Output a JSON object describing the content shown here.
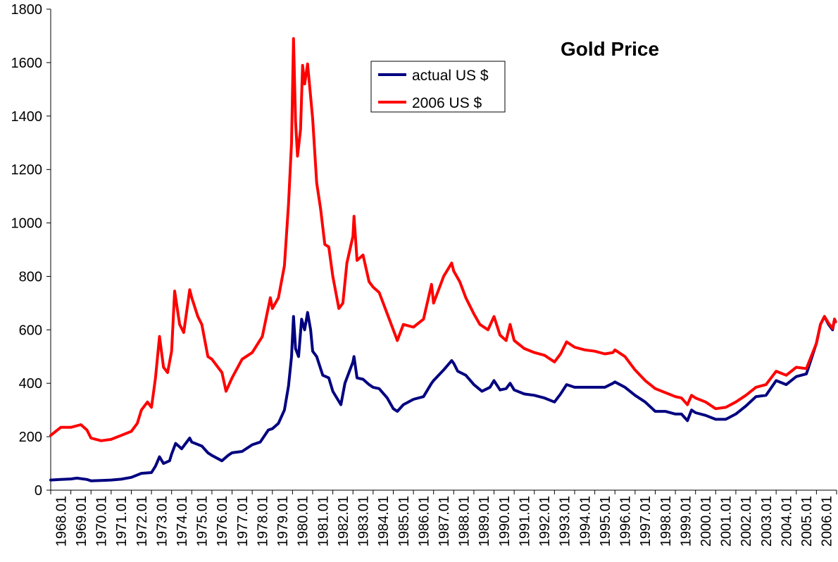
{
  "chart_data": {
    "type": "line",
    "title": "Gold Price",
    "xlabel": "",
    "ylabel": "",
    "ylim": [
      0,
      1800
    ],
    "y_ticks": [
      "0",
      "200",
      "400",
      "600",
      "800",
      "1000",
      "1200",
      "1400",
      "1600",
      "1800"
    ],
    "x_ticks": [
      "1968.01",
      "1969.01",
      "1970.01",
      "1971.01",
      "1972.01",
      "1973.01",
      "1974.01",
      "1975.01",
      "1976.01",
      "1977.01",
      "1978.01",
      "1979.01",
      "1980.01",
      "1981.01",
      "1982.01",
      "1983.01",
      "1984.01",
      "1985.01",
      "1986.01",
      "1987.01",
      "1988.01",
      "1989.01",
      "1990.01",
      "1991.01",
      "1992.01",
      "1993.01",
      "1994.01",
      "1995.01",
      "1996.01",
      "1997.01",
      "1998.01",
      "1999.01",
      "2000.01",
      "2001.01",
      "2002.01",
      "2003.01",
      "2004.01",
      "2005.01",
      "2006.01"
    ],
    "grid": false,
    "legend_position": "top-center",
    "series": [
      {
        "name": "actual US $",
        "color": "#000080",
        "points": [
          [
            1968.0,
            38
          ],
          [
            1968.5,
            40
          ],
          [
            1969.0,
            42
          ],
          [
            1969.3,
            45
          ],
          [
            1969.8,
            40
          ],
          [
            1970.0,
            35
          ],
          [
            1970.5,
            36
          ],
          [
            1971.0,
            38
          ],
          [
            1971.5,
            41
          ],
          [
            1972.0,
            48
          ],
          [
            1972.5,
            63
          ],
          [
            1973.0,
            66
          ],
          [
            1973.2,
            90
          ],
          [
            1973.4,
            125
          ],
          [
            1973.6,
            100
          ],
          [
            1973.9,
            110
          ],
          [
            1974.0,
            135
          ],
          [
            1974.2,
            175
          ],
          [
            1974.5,
            155
          ],
          [
            1974.9,
            195
          ],
          [
            1975.0,
            180
          ],
          [
            1975.5,
            165
          ],
          [
            1975.8,
            140
          ],
          [
            1976.0,
            130
          ],
          [
            1976.5,
            110
          ],
          [
            1976.8,
            130
          ],
          [
            1977.0,
            140
          ],
          [
            1977.5,
            145
          ],
          [
            1978.0,
            170
          ],
          [
            1978.4,
            180
          ],
          [
            1978.8,
            225
          ],
          [
            1979.0,
            230
          ],
          [
            1979.3,
            250
          ],
          [
            1979.6,
            300
          ],
          [
            1979.8,
            390
          ],
          [
            1979.95,
            500
          ],
          [
            1980.05,
            650
          ],
          [
            1980.15,
            530
          ],
          [
            1980.3,
            500
          ],
          [
            1980.45,
            640
          ],
          [
            1980.6,
            600
          ],
          [
            1980.75,
            665
          ],
          [
            1980.9,
            600
          ],
          [
            1981.0,
            520
          ],
          [
            1981.2,
            500
          ],
          [
            1981.5,
            430
          ],
          [
            1981.8,
            420
          ],
          [
            1982.0,
            370
          ],
          [
            1982.4,
            320
          ],
          [
            1982.6,
            400
          ],
          [
            1982.8,
            440
          ],
          [
            1983.0,
            480
          ],
          [
            1983.05,
            500
          ],
          [
            1983.2,
            420
          ],
          [
            1983.5,
            415
          ],
          [
            1983.8,
            395
          ],
          [
            1984.0,
            385
          ],
          [
            1984.3,
            380
          ],
          [
            1984.7,
            345
          ],
          [
            1985.0,
            305
          ],
          [
            1985.2,
            295
          ],
          [
            1985.5,
            320
          ],
          [
            1986.0,
            340
          ],
          [
            1986.5,
            350
          ],
          [
            1986.9,
            400
          ],
          [
            1987.0,
            410
          ],
          [
            1987.5,
            450
          ],
          [
            1987.9,
            485
          ],
          [
            1988.0,
            475
          ],
          [
            1988.2,
            445
          ],
          [
            1988.6,
            430
          ],
          [
            1989.0,
            395
          ],
          [
            1989.4,
            370
          ],
          [
            1989.8,
            385
          ],
          [
            1990.0,
            410
          ],
          [
            1990.3,
            375
          ],
          [
            1990.6,
            380
          ],
          [
            1990.8,
            400
          ],
          [
            1991.0,
            375
          ],
          [
            1991.5,
            360
          ],
          [
            1992.0,
            355
          ],
          [
            1992.5,
            345
          ],
          [
            1993.0,
            330
          ],
          [
            1993.3,
            360
          ],
          [
            1993.6,
            395
          ],
          [
            1994.0,
            385
          ],
          [
            1994.5,
            385
          ],
          [
            1995.0,
            385
          ],
          [
            1995.5,
            385
          ],
          [
            1995.9,
            400
          ],
          [
            1996.0,
            405
          ],
          [
            1996.5,
            385
          ],
          [
            1997.0,
            355
          ],
          [
            1997.5,
            330
          ],
          [
            1998.0,
            295
          ],
          [
            1998.5,
            295
          ],
          [
            1999.0,
            285
          ],
          [
            1999.3,
            285
          ],
          [
            1999.6,
            260
          ],
          [
            1999.8,
            300
          ],
          [
            2000.0,
            290
          ],
          [
            2000.5,
            280
          ],
          [
            2001.0,
            265
          ],
          [
            2001.5,
            265
          ],
          [
            2002.0,
            285
          ],
          [
            2002.5,
            315
          ],
          [
            2003.0,
            350
          ],
          [
            2003.5,
            355
          ],
          [
            2004.0,
            410
          ],
          [
            2004.5,
            395
          ],
          [
            2005.0,
            425
          ],
          [
            2005.5,
            435
          ],
          [
            2006.0,
            550
          ],
          [
            2006.2,
            620
          ],
          [
            2006.4,
            650
          ],
          [
            2006.6,
            620
          ],
          [
            2006.8,
            600
          ],
          [
            2006.9,
            640
          ],
          [
            2006.95,
            630
          ]
        ]
      },
      {
        "name": "2006 US $",
        "color": "#ff0000",
        "points": [
          [
            1968.0,
            205
          ],
          [
            1968.5,
            235
          ],
          [
            1969.0,
            235
          ],
          [
            1969.5,
            245
          ],
          [
            1969.8,
            225
          ],
          [
            1970.0,
            195
          ],
          [
            1970.5,
            185
          ],
          [
            1971.0,
            190
          ],
          [
            1971.5,
            205
          ],
          [
            1972.0,
            220
          ],
          [
            1972.3,
            250
          ],
          [
            1972.5,
            300
          ],
          [
            1972.8,
            330
          ],
          [
            1973.0,
            310
          ],
          [
            1973.2,
            420
          ],
          [
            1973.4,
            575
          ],
          [
            1973.6,
            460
          ],
          [
            1973.8,
            440
          ],
          [
            1974.0,
            520
          ],
          [
            1974.15,
            745
          ],
          [
            1974.4,
            620
          ],
          [
            1974.6,
            590
          ],
          [
            1974.9,
            750
          ],
          [
            1975.0,
            720
          ],
          [
            1975.3,
            650
          ],
          [
            1975.5,
            620
          ],
          [
            1975.8,
            500
          ],
          [
            1976.0,
            490
          ],
          [
            1976.5,
            440
          ],
          [
            1976.7,
            370
          ],
          [
            1977.0,
            420
          ],
          [
            1977.5,
            490
          ],
          [
            1978.0,
            515
          ],
          [
            1978.5,
            575
          ],
          [
            1978.9,
            720
          ],
          [
            1979.0,
            680
          ],
          [
            1979.3,
            720
          ],
          [
            1979.6,
            840
          ],
          [
            1979.8,
            1070
          ],
          [
            1979.95,
            1300
          ],
          [
            1980.05,
            1690
          ],
          [
            1980.15,
            1380
          ],
          [
            1980.25,
            1250
          ],
          [
            1980.4,
            1350
          ],
          [
            1980.5,
            1590
          ],
          [
            1980.6,
            1520
          ],
          [
            1980.75,
            1595
          ],
          [
            1981.0,
            1390
          ],
          [
            1981.2,
            1150
          ],
          [
            1981.4,
            1050
          ],
          [
            1981.6,
            920
          ],
          [
            1981.8,
            910
          ],
          [
            1982.0,
            800
          ],
          [
            1982.3,
            680
          ],
          [
            1982.5,
            700
          ],
          [
            1982.7,
            850
          ],
          [
            1983.0,
            950
          ],
          [
            1983.05,
            1025
          ],
          [
            1983.2,
            860
          ],
          [
            1983.5,
            880
          ],
          [
            1983.8,
            780
          ],
          [
            1984.0,
            760
          ],
          [
            1984.3,
            740
          ],
          [
            1984.7,
            660
          ],
          [
            1985.0,
            600
          ],
          [
            1985.2,
            560
          ],
          [
            1985.5,
            620
          ],
          [
            1986.0,
            610
          ],
          [
            1986.5,
            640
          ],
          [
            1986.9,
            770
          ],
          [
            1987.0,
            700
          ],
          [
            1987.5,
            800
          ],
          [
            1987.9,
            850
          ],
          [
            1988.0,
            820
          ],
          [
            1988.3,
            780
          ],
          [
            1988.6,
            720
          ],
          [
            1989.0,
            660
          ],
          [
            1989.3,
            620
          ],
          [
            1989.7,
            600
          ],
          [
            1990.0,
            650
          ],
          [
            1990.3,
            580
          ],
          [
            1990.6,
            560
          ],
          [
            1990.8,
            620
          ],
          [
            1991.0,
            560
          ],
          [
            1991.5,
            530
          ],
          [
            1992.0,
            515
          ],
          [
            1992.5,
            505
          ],
          [
            1993.0,
            480
          ],
          [
            1993.3,
            510
          ],
          [
            1993.6,
            555
          ],
          [
            1994.0,
            535
          ],
          [
            1994.5,
            525
          ],
          [
            1995.0,
            520
          ],
          [
            1995.5,
            510
          ],
          [
            1995.9,
            515
          ],
          [
            1996.0,
            525
          ],
          [
            1996.5,
            500
          ],
          [
            1997.0,
            450
          ],
          [
            1997.5,
            410
          ],
          [
            1998.0,
            380
          ],
          [
            1998.5,
            365
          ],
          [
            1999.0,
            350
          ],
          [
            1999.3,
            345
          ],
          [
            1999.6,
            320
          ],
          [
            1999.8,
            355
          ],
          [
            2000.0,
            345
          ],
          [
            2000.5,
            330
          ],
          [
            2001.0,
            305
          ],
          [
            2001.5,
            310
          ],
          [
            2002.0,
            330
          ],
          [
            2002.5,
            355
          ],
          [
            2003.0,
            385
          ],
          [
            2003.5,
            395
          ],
          [
            2004.0,
            445
          ],
          [
            2004.5,
            430
          ],
          [
            2005.0,
            460
          ],
          [
            2005.5,
            455
          ],
          [
            2006.0,
            550
          ],
          [
            2006.2,
            620
          ],
          [
            2006.4,
            650
          ],
          [
            2006.6,
            625
          ],
          [
            2006.8,
            605
          ],
          [
            2006.9,
            640
          ],
          [
            2006.95,
            630
          ]
        ]
      }
    ]
  }
}
